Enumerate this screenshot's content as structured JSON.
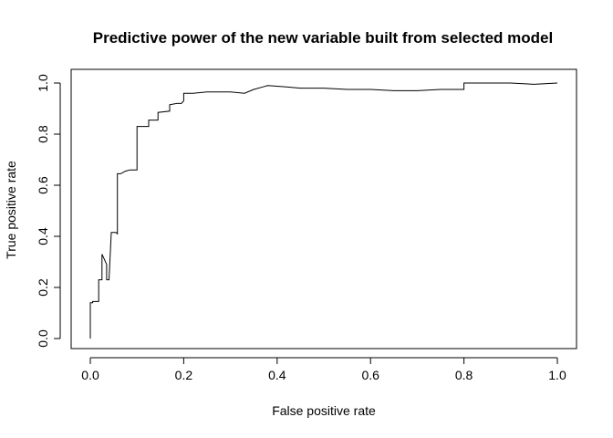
{
  "chart_data": {
    "type": "line",
    "title": "Predictive power of the new variable built from selected model",
    "xlabel": "False positive rate",
    "ylabel": "True positive rate",
    "xlim": [
      0,
      1
    ],
    "ylim": [
      0,
      1
    ],
    "xticks": [
      "0.0",
      "0.2",
      "0.4",
      "0.6",
      "0.8",
      "1.0"
    ],
    "yticks": [
      "0.0",
      "0.2",
      "0.4",
      "0.6",
      "0.8",
      "1.0"
    ],
    "grid": false,
    "legend": "none",
    "line_color": "#000000",
    "series": [
      {
        "x": [
          0.0,
          0.0,
          0.005,
          0.005,
          0.018,
          0.018,
          0.025,
          0.025,
          0.03,
          0.035,
          0.035,
          0.04,
          0.045,
          0.055,
          0.058,
          0.058,
          0.065,
          0.075,
          0.085,
          0.095,
          0.1,
          0.1,
          0.125,
          0.125,
          0.135,
          0.135,
          0.145,
          0.145,
          0.17,
          0.17,
          0.185,
          0.195,
          0.2,
          0.2,
          0.22,
          0.25,
          0.3,
          0.33,
          0.35,
          0.37,
          0.38,
          0.42,
          0.45,
          0.5,
          0.55,
          0.6,
          0.65,
          0.7,
          0.75,
          0.8,
          0.8,
          0.82,
          0.9,
          0.95,
          1.0
        ],
        "y": [
          0.0,
          0.14,
          0.14,
          0.145,
          0.145,
          0.23,
          0.23,
          0.33,
          0.31,
          0.29,
          0.23,
          0.23,
          0.415,
          0.415,
          0.41,
          0.645,
          0.645,
          0.655,
          0.66,
          0.66,
          0.66,
          0.83,
          0.83,
          0.855,
          0.855,
          0.855,
          0.855,
          0.885,
          0.89,
          0.915,
          0.92,
          0.92,
          0.93,
          0.96,
          0.96,
          0.965,
          0.965,
          0.96,
          0.975,
          0.985,
          0.99,
          0.985,
          0.98,
          0.98,
          0.975,
          0.975,
          0.97,
          0.97,
          0.975,
          0.975,
          1.0,
          1.0,
          1.0,
          0.995,
          1.0
        ]
      }
    ]
  }
}
